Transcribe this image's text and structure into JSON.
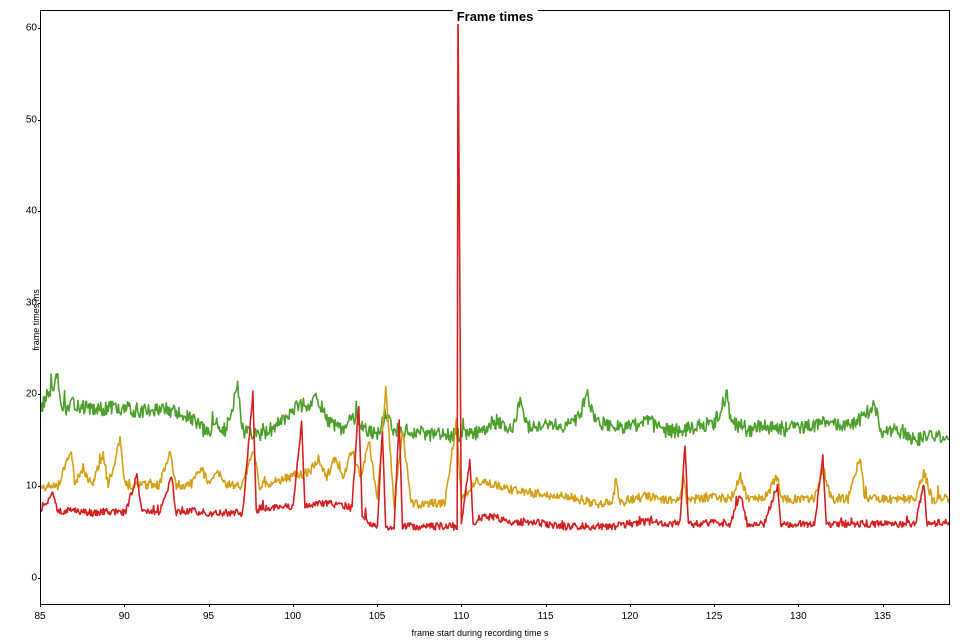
{
  "chart": {
    "type": "line",
    "title": "Frame times",
    "title_fontsize": 13,
    "title_fontweight": "bold",
    "xlabel": "frame start during recording time s",
    "ylabel": "frame times ms",
    "label_fontsize": 9,
    "tick_fontsize": 10,
    "background_color": "#ffffff",
    "border_color": "#000000",
    "xlim": [
      85,
      139
    ],
    "ylim": [
      -3,
      62
    ],
    "xticks": [
      85,
      90,
      95,
      100,
      105,
      110,
      115,
      120,
      125,
      130,
      135
    ],
    "yticks": [
      0,
      10,
      20,
      30,
      40,
      50,
      60
    ],
    "line_width": 1.6,
    "series": [
      {
        "name": "green",
        "color": "#4da02c",
        "baseline": 18,
        "segments": [
          {
            "x": 85,
            "y": 18.5
          },
          {
            "x": 86,
            "y": 22
          },
          {
            "x": 86.3,
            "y": 18
          },
          {
            "x": 87,
            "y": 19
          },
          {
            "x": 88,
            "y": 18.2
          },
          {
            "x": 89,
            "y": 18.5
          },
          {
            "x": 90,
            "y": 18.4
          },
          {
            "x": 91,
            "y": 18.2
          },
          {
            "x": 92,
            "y": 18.5
          },
          {
            "x": 93,
            "y": 18
          },
          {
            "x": 94,
            "y": 17.2
          },
          {
            "x": 95,
            "y": 15.5
          },
          {
            "x": 95.3,
            "y": 17
          },
          {
            "x": 96,
            "y": 16
          },
          {
            "x": 96.7,
            "y": 21
          },
          {
            "x": 97,
            "y": 16
          },
          {
            "x": 98,
            "y": 15.5
          },
          {
            "x": 99,
            "y": 16.5
          },
          {
            "x": 100,
            "y": 18.5
          },
          {
            "x": 101,
            "y": 19
          },
          {
            "x": 101.5,
            "y": 19.5
          },
          {
            "x": 102,
            "y": 17
          },
          {
            "x": 103,
            "y": 16
          },
          {
            "x": 103.5,
            "y": 17.5
          },
          {
            "x": 104,
            "y": 16.5
          },
          {
            "x": 105,
            "y": 15.5
          },
          {
            "x": 105.5,
            "y": 18
          },
          {
            "x": 106,
            "y": 16
          },
          {
            "x": 107,
            "y": 16
          },
          {
            "x": 108,
            "y": 15.5
          },
          {
            "x": 109,
            "y": 15.5
          },
          {
            "x": 110,
            "y": 15.5
          },
          {
            "x": 111,
            "y": 15.8
          },
          {
            "x": 112,
            "y": 17
          },
          {
            "x": 113,
            "y": 16
          },
          {
            "x": 113.5,
            "y": 19
          },
          {
            "x": 114,
            "y": 16.5
          },
          {
            "x": 115,
            "y": 17
          },
          {
            "x": 116,
            "y": 16.5
          },
          {
            "x": 117,
            "y": 17.5
          },
          {
            "x": 117.5,
            "y": 20
          },
          {
            "x": 118,
            "y": 17
          },
          {
            "x": 119,
            "y": 16.5
          },
          {
            "x": 120,
            "y": 16.5
          },
          {
            "x": 121,
            "y": 17
          },
          {
            "x": 122,
            "y": 16
          },
          {
            "x": 123,
            "y": 16
          },
          {
            "x": 124,
            "y": 16.5
          },
          {
            "x": 125,
            "y": 16.5
          },
          {
            "x": 125.8,
            "y": 20
          },
          {
            "x": 126,
            "y": 17
          },
          {
            "x": 127,
            "y": 16
          },
          {
            "x": 128,
            "y": 16.5
          },
          {
            "x": 129,
            "y": 16
          },
          {
            "x": 130,
            "y": 16.5
          },
          {
            "x": 131,
            "y": 16.5
          },
          {
            "x": 132,
            "y": 17
          },
          {
            "x": 133,
            "y": 16.5
          },
          {
            "x": 134,
            "y": 17.5
          },
          {
            "x": 134.5,
            "y": 19
          },
          {
            "x": 135,
            "y": 16
          },
          {
            "x": 136,
            "y": 16
          },
          {
            "x": 137,
            "y": 15
          },
          {
            "x": 138,
            "y": 15.5
          },
          {
            "x": 139,
            "y": 15
          }
        ],
        "noise": 0.8,
        "spikes": [
          {
            "x": 86,
            "y": 22
          },
          {
            "x": 96.7,
            "y": 21
          },
          {
            "x": 113.5,
            "y": 19
          },
          {
            "x": 117.5,
            "y": 20
          },
          {
            "x": 125.8,
            "y": 20
          },
          {
            "x": 134.5,
            "y": 19
          }
        ]
      },
      {
        "name": "orange",
        "color": "#d4a017",
        "baseline": 10,
        "segments": [
          {
            "x": 85,
            "y": 9.8
          },
          {
            "x": 86,
            "y": 10
          },
          {
            "x": 86.8,
            "y": 14
          },
          {
            "x": 87,
            "y": 10
          },
          {
            "x": 87.5,
            "y": 12
          },
          {
            "x": 88,
            "y": 10
          },
          {
            "x": 88.7,
            "y": 13.5
          },
          {
            "x": 89,
            "y": 10
          },
          {
            "x": 89.7,
            "y": 15
          },
          {
            "x": 90,
            "y": 10
          },
          {
            "x": 91,
            "y": 10
          },
          {
            "x": 92,
            "y": 10
          },
          {
            "x": 92.7,
            "y": 13.5
          },
          {
            "x": 93,
            "y": 10
          },
          {
            "x": 94,
            "y": 10.2
          },
          {
            "x": 94.5,
            "y": 12
          },
          {
            "x": 95,
            "y": 10
          },
          {
            "x": 95.5,
            "y": 11.5
          },
          {
            "x": 96,
            "y": 10
          },
          {
            "x": 97,
            "y": 10
          },
          {
            "x": 97.6,
            "y": 14
          },
          {
            "x": 98,
            "y": 10
          },
          {
            "x": 99,
            "y": 10.5
          },
          {
            "x": 100,
            "y": 11
          },
          {
            "x": 101,
            "y": 11.5
          },
          {
            "x": 101.5,
            "y": 13
          },
          {
            "x": 102,
            "y": 11
          },
          {
            "x": 102.5,
            "y": 13
          },
          {
            "x": 103,
            "y": 11
          },
          {
            "x": 103.5,
            "y": 14
          },
          {
            "x": 104,
            "y": 11
          },
          {
            "x": 104.5,
            "y": 15
          },
          {
            "x": 105,
            "y": 8.5
          },
          {
            "x": 105.5,
            "y": 20.5
          },
          {
            "x": 106,
            "y": 8
          },
          {
            "x": 106.5,
            "y": 16
          },
          {
            "x": 107,
            "y": 8
          },
          {
            "x": 108,
            "y": 8
          },
          {
            "x": 109,
            "y": 8
          },
          {
            "x": 109.7,
            "y": 17
          },
          {
            "x": 110,
            "y": 8.5
          },
          {
            "x": 111,
            "y": 10.5
          },
          {
            "x": 112,
            "y": 10
          },
          {
            "x": 113,
            "y": 9.5
          },
          {
            "x": 114,
            "y": 9.2
          },
          {
            "x": 115,
            "y": 9
          },
          {
            "x": 116,
            "y": 8.8
          },
          {
            "x": 117,
            "y": 8.5
          },
          {
            "x": 118,
            "y": 8
          },
          {
            "x": 119,
            "y": 8
          },
          {
            "x": 119.2,
            "y": 11
          },
          {
            "x": 119.4,
            "y": 8
          },
          {
            "x": 120,
            "y": 8.5
          },
          {
            "x": 121,
            "y": 8.8
          },
          {
            "x": 122,
            "y": 8.5
          },
          {
            "x": 123,
            "y": 8.5
          },
          {
            "x": 123.2,
            "y": 11
          },
          {
            "x": 123.4,
            "y": 8.5
          },
          {
            "x": 124,
            "y": 8.5
          },
          {
            "x": 125,
            "y": 8.8
          },
          {
            "x": 126,
            "y": 8.5
          },
          {
            "x": 126.6,
            "y": 11
          },
          {
            "x": 127,
            "y": 8.5
          },
          {
            "x": 128,
            "y": 8.5
          },
          {
            "x": 128.8,
            "y": 11
          },
          {
            "x": 129,
            "y": 8.5
          },
          {
            "x": 130,
            "y": 8.5
          },
          {
            "x": 131,
            "y": 8.5
          },
          {
            "x": 131.5,
            "y": 12
          },
          {
            "x": 132,
            "y": 8.5
          },
          {
            "x": 133,
            "y": 8.5
          },
          {
            "x": 133.7,
            "y": 13
          },
          {
            "x": 134,
            "y": 8.5
          },
          {
            "x": 135,
            "y": 8.5
          },
          {
            "x": 136,
            "y": 8.5
          },
          {
            "x": 137,
            "y": 8.5
          },
          {
            "x": 137.5,
            "y": 11.5
          },
          {
            "x": 138,
            "y": 8.5
          },
          {
            "x": 139,
            "y": 8.5
          }
        ],
        "noise": 0.5,
        "spikes": []
      },
      {
        "name": "red",
        "color": "#d42020",
        "baseline": 7,
        "segments": [
          {
            "x": 85,
            "y": 7.5
          },
          {
            "x": 85.7,
            "y": 9
          },
          {
            "x": 86,
            "y": 7.2
          },
          {
            "x": 87,
            "y": 7.2
          },
          {
            "x": 88,
            "y": 7
          },
          {
            "x": 89,
            "y": 7.2
          },
          {
            "x": 90,
            "y": 7
          },
          {
            "x": 90.7,
            "y": 11
          },
          {
            "x": 91,
            "y": 7
          },
          {
            "x": 92,
            "y": 7
          },
          {
            "x": 92.8,
            "y": 11
          },
          {
            "x": 93,
            "y": 7
          },
          {
            "x": 94,
            "y": 7.2
          },
          {
            "x": 95,
            "y": 7
          },
          {
            "x": 96,
            "y": 7
          },
          {
            "x": 97,
            "y": 7
          },
          {
            "x": 97.6,
            "y": 20
          },
          {
            "x": 97.8,
            "y": 7
          },
          {
            "x": 98,
            "y": 7.5
          },
          {
            "x": 99,
            "y": 7.5
          },
          {
            "x": 100,
            "y": 7.8
          },
          {
            "x": 100.5,
            "y": 17
          },
          {
            "x": 100.7,
            "y": 7.5
          },
          {
            "x": 101,
            "y": 8
          },
          {
            "x": 102,
            "y": 8
          },
          {
            "x": 103,
            "y": 7.8
          },
          {
            "x": 103.5,
            "y": 7.5
          },
          {
            "x": 103.9,
            "y": 19
          },
          {
            "x": 104.1,
            "y": 7
          },
          {
            "x": 104.5,
            "y": 6
          },
          {
            "x": 105,
            "y": 5.5
          },
          {
            "x": 105.3,
            "y": 16
          },
          {
            "x": 105.5,
            "y": 5.5
          },
          {
            "x": 106,
            "y": 5.5
          },
          {
            "x": 106.3,
            "y": 17
          },
          {
            "x": 106.5,
            "y": 5.5
          },
          {
            "x": 107,
            "y": 5.5
          },
          {
            "x": 108,
            "y": 5.5
          },
          {
            "x": 109,
            "y": 5.5
          },
          {
            "x": 109.75,
            "y": 5.5
          },
          {
            "x": 109.8,
            "y": 62
          },
          {
            "x": 110.0,
            "y": 5.5
          },
          {
            "x": 110.5,
            "y": 13
          },
          {
            "x": 110.7,
            "y": 5.8
          },
          {
            "x": 111,
            "y": 6.5
          },
          {
            "x": 112,
            "y": 6.5
          },
          {
            "x": 113,
            "y": 6
          },
          {
            "x": 114,
            "y": 6
          },
          {
            "x": 115,
            "y": 5.8
          },
          {
            "x": 116,
            "y": 5.5
          },
          {
            "x": 117,
            "y": 5.5
          },
          {
            "x": 118,
            "y": 5.5
          },
          {
            "x": 119,
            "y": 5.5
          },
          {
            "x": 120,
            "y": 5.8
          },
          {
            "x": 121,
            "y": 6
          },
          {
            "x": 122,
            "y": 5.8
          },
          {
            "x": 123,
            "y": 5.8
          },
          {
            "x": 123.3,
            "y": 14.5
          },
          {
            "x": 123.5,
            "y": 5.8
          },
          {
            "x": 124,
            "y": 5.8
          },
          {
            "x": 125,
            "y": 6
          },
          {
            "x": 126,
            "y": 5.8
          },
          {
            "x": 126.6,
            "y": 9
          },
          {
            "x": 127,
            "y": 5.8
          },
          {
            "x": 128,
            "y": 5.8
          },
          {
            "x": 128.8,
            "y": 10
          },
          {
            "x": 129,
            "y": 5.8
          },
          {
            "x": 130,
            "y": 5.8
          },
          {
            "x": 131,
            "y": 5.8
          },
          {
            "x": 131.5,
            "y": 13
          },
          {
            "x": 131.7,
            "y": 5.8
          },
          {
            "x": 132,
            "y": 5.8
          },
          {
            "x": 133,
            "y": 5.8
          },
          {
            "x": 134,
            "y": 5.8
          },
          {
            "x": 135,
            "y": 5.8
          },
          {
            "x": 136,
            "y": 5.8
          },
          {
            "x": 137,
            "y": 5.8
          },
          {
            "x": 137.5,
            "y": 10
          },
          {
            "x": 137.7,
            "y": 5.8
          },
          {
            "x": 138,
            "y": 5.8
          },
          {
            "x": 139,
            "y": 6
          }
        ],
        "noise": 0.4,
        "spikes": []
      }
    ]
  }
}
